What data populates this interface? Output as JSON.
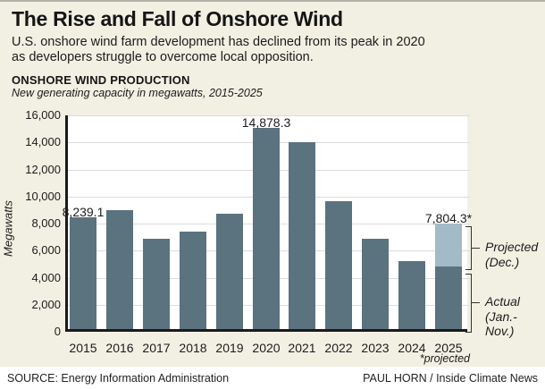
{
  "header": {
    "title": "The Rise and Fall of Onshore Wind",
    "subtitle_line1": "U.S. onshore wind farm development has declined from its peak in 2020",
    "subtitle_line2": "as developers struggle to overcome local opposition.",
    "chart_heading": "ONSHORE WIND PRODUCTION",
    "chart_subheading": "New generating capacity in megawatts, 2015-2025"
  },
  "chart_data": {
    "type": "bar",
    "title": "ONSHORE WIND PRODUCTION",
    "subtitle": "New generating capacity in megawatts, 2015-2025",
    "ylabel": "Megawatts",
    "xlabel": "",
    "ylim": [
      0,
      16000
    ],
    "grid": "horizontal",
    "legend_position": "none",
    "categories": [
      "2015",
      "2016",
      "2017",
      "2018",
      "2019",
      "2020",
      "2021",
      "2022",
      "2023",
      "2024",
      "2025"
    ],
    "series": [
      {
        "name": "Actual (Jan.-Nov.)",
        "values": [
          8239.1,
          8800,
          6650,
          7200,
          8550,
          14878.3,
          13850,
          9450,
          6650,
          5000,
          4600
        ]
      },
      {
        "name": "Projected (Dec.)",
        "values": [
          0,
          0,
          0,
          0,
          0,
          0,
          0,
          0,
          0,
          0,
          3204.3
        ]
      }
    ],
    "totals": [
      8239.1,
      8800,
      6650,
      7200,
      8550,
      14878.3,
      13850,
      9450,
      6650,
      5000,
      7804.3
    ],
    "yticks": [
      {
        "label": "16,000",
        "value": 16000
      },
      {
        "label": "14,000",
        "value": 14000
      },
      {
        "label": "12,000",
        "value": 12000
      },
      {
        "label": "10,000",
        "value": 10000
      },
      {
        "label": "8,000",
        "value": 8000
      },
      {
        "label": "6,000",
        "value": 6000
      },
      {
        "label": "4,000",
        "value": 4000
      },
      {
        "label": "2,000",
        "value": 2000
      },
      {
        "label": "0",
        "value": 0
      }
    ],
    "data_labels": [
      {
        "index": 0,
        "text": "8,239.1"
      },
      {
        "index": 5,
        "text": "14,878.3"
      },
      {
        "index": 10,
        "text": "7,804.3*"
      }
    ]
  },
  "annotations": {
    "projected_line1": "Projected",
    "projected_line2": "(Dec.)",
    "actual_line1": "Actual",
    "actual_line2": "(Jan.-Nov.)",
    "x_footnote": "*projected"
  },
  "footer": {
    "source": "SOURCE: Energy Information Administration",
    "credit": "PAUL HORN / Inside Climate News"
  },
  "colors": {
    "background": "#f2f0e3",
    "plot_background": "#ffffff",
    "bar_actual": "#5b727f",
    "bar_projected": "#a3bac7",
    "gridline": "#dcdcdc",
    "axis": "#1a1a1a",
    "text": "#1c1c1c"
  }
}
